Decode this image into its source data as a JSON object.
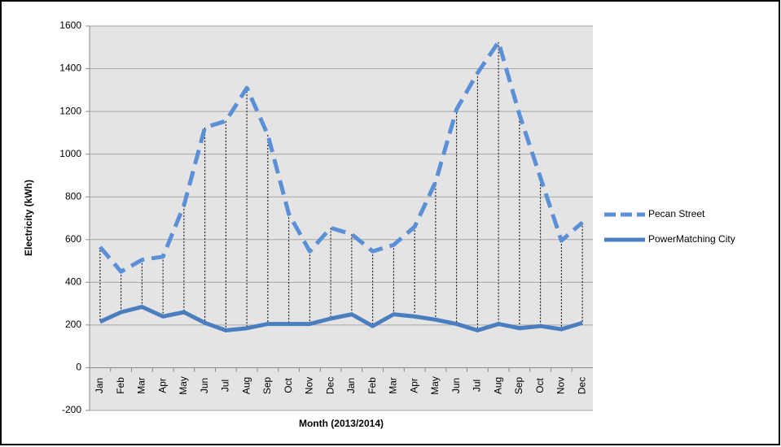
{
  "chart_data": {
    "type": "line",
    "x_label": "Month (2013/2014)",
    "y_label": "Electricity (kWh)",
    "categories": [
      "Jan",
      "Feb",
      "Mar",
      "Apr",
      "May",
      "Jun",
      "Jul",
      "Aug",
      "Sep",
      "Oct",
      "Nov",
      "Dec",
      "Jan",
      "Feb",
      "Mar",
      "Apr",
      "May",
      "Jun",
      "Jul",
      "Aug",
      "Sep",
      "Oct",
      "Nov",
      "Dec"
    ],
    "series": [
      {
        "name": "Pecan Street",
        "color": "#5b8fd6",
        "dash": true,
        "values": [
          565,
          450,
          505,
          520,
          760,
          1125,
          1155,
          1310,
          1090,
          720,
          545,
          655,
          625,
          545,
          575,
          660,
          870,
          1210,
          1380,
          1525,
          1185,
          890,
          595,
          680
        ]
      },
      {
        "name": "PowerMatching City",
        "color": "#4a7ebf",
        "dash": false,
        "values": [
          215,
          260,
          285,
          240,
          260,
          210,
          175,
          185,
          205,
          205,
          205,
          230,
          250,
          195,
          250,
          240,
          225,
          205,
          175,
          205,
          185,
          195,
          180,
          210
        ]
      }
    ],
    "ylim": [
      -200,
      1600
    ],
    "yticks": [
      -200,
      0,
      200,
      400,
      600,
      800,
      1000,
      1200,
      1400,
      1600
    ],
    "grid": true,
    "drop_lines": true,
    "legend": "right"
  }
}
